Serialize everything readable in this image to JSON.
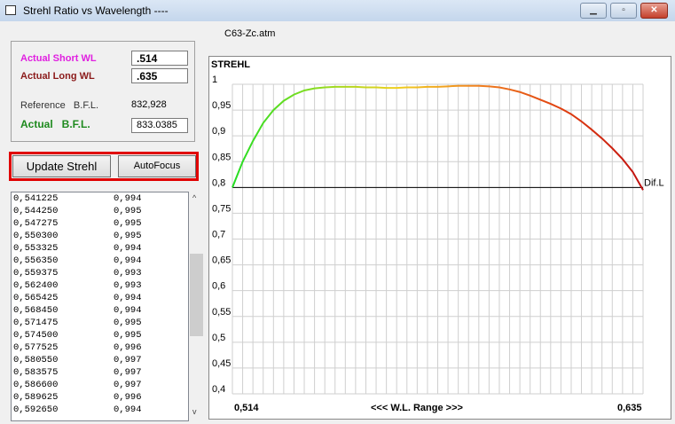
{
  "window": {
    "title": "Strehl Ratio vs Wavelength  ----",
    "file": "C63-Zc.atm",
    "controls": [
      "minimize-icon",
      "maximize-icon",
      "close-icon"
    ]
  },
  "params": {
    "short_wl_label": "Actual Short WL",
    "short_wl_value": ".514",
    "long_wl_label": "Actual Long WL",
    "long_wl_value": ".635",
    "ref_bfl_label": "Reference   B.F.L.",
    "ref_bfl_value": "832,928",
    "actual_bfl_label": "Actual   B.F.L.",
    "actual_bfl_value": "833.0385",
    "colors": {
      "short": "#e020e0",
      "long": "#8b1a1a",
      "actual": "#1e8a1e"
    }
  },
  "buttons": {
    "update": "Update Strehl",
    "autofocus": "AutoFocus"
  },
  "list": [
    [
      "0,541225",
      "0,994"
    ],
    [
      "0,544250",
      "0,995"
    ],
    [
      "0,547275",
      "0,995"
    ],
    [
      "0,550300",
      "0,995"
    ],
    [
      "0,553325",
      "0,994"
    ],
    [
      "0,556350",
      "0,994"
    ],
    [
      "0,559375",
      "0,993"
    ],
    [
      "0,562400",
      "0,993"
    ],
    [
      "0,565425",
      "0,994"
    ],
    [
      "0,568450",
      "0,994"
    ],
    [
      "0,571475",
      "0,995"
    ],
    [
      "0,574500",
      "0,995"
    ],
    [
      "0,577525",
      "0,996"
    ],
    [
      "0,580550",
      "0,997"
    ],
    [
      "0,583575",
      "0,997"
    ],
    [
      "0,586600",
      "0,997"
    ],
    [
      "0,589625",
      "0,996"
    ],
    [
      "0,592650",
      "0,994"
    ]
  ],
  "chart_data": {
    "type": "line",
    "title": "STREHL",
    "xlabel": "<<<  W.L. Range  >>>",
    "x_min_label": "0,514",
    "x_max_label": "0,635",
    "xlim": [
      0.514,
      0.635
    ],
    "ylim": [
      0.4,
      1.0
    ],
    "yticks": [
      "1",
      "0,95",
      "0,9",
      "0,85",
      "0,8",
      "0,75",
      "0,7",
      "0,65",
      "0,6",
      "0,55",
      "0,5",
      "0,45",
      "0,4"
    ],
    "grid": true,
    "reference_line": {
      "label": "Dif.L",
      "value": 0.8
    },
    "x_step": 0.003025,
    "values": [
      0.8,
      0.85,
      0.89,
      0.925,
      0.95,
      0.968,
      0.98,
      0.988,
      0.992,
      0.994,
      0.995,
      0.995,
      0.995,
      0.994,
      0.994,
      0.993,
      0.993,
      0.994,
      0.994,
      0.995,
      0.995,
      0.996,
      0.997,
      0.997,
      0.997,
      0.996,
      0.994,
      0.99,
      0.985,
      0.978,
      0.97,
      0.962,
      0.953,
      0.942,
      0.928,
      0.912,
      0.895,
      0.876,
      0.855,
      0.83,
      0.795
    ],
    "line_colors": [
      "#22dd22",
      "#88dd22",
      "#f0d020",
      "#f08020",
      "#e04010",
      "#c01010"
    ]
  }
}
